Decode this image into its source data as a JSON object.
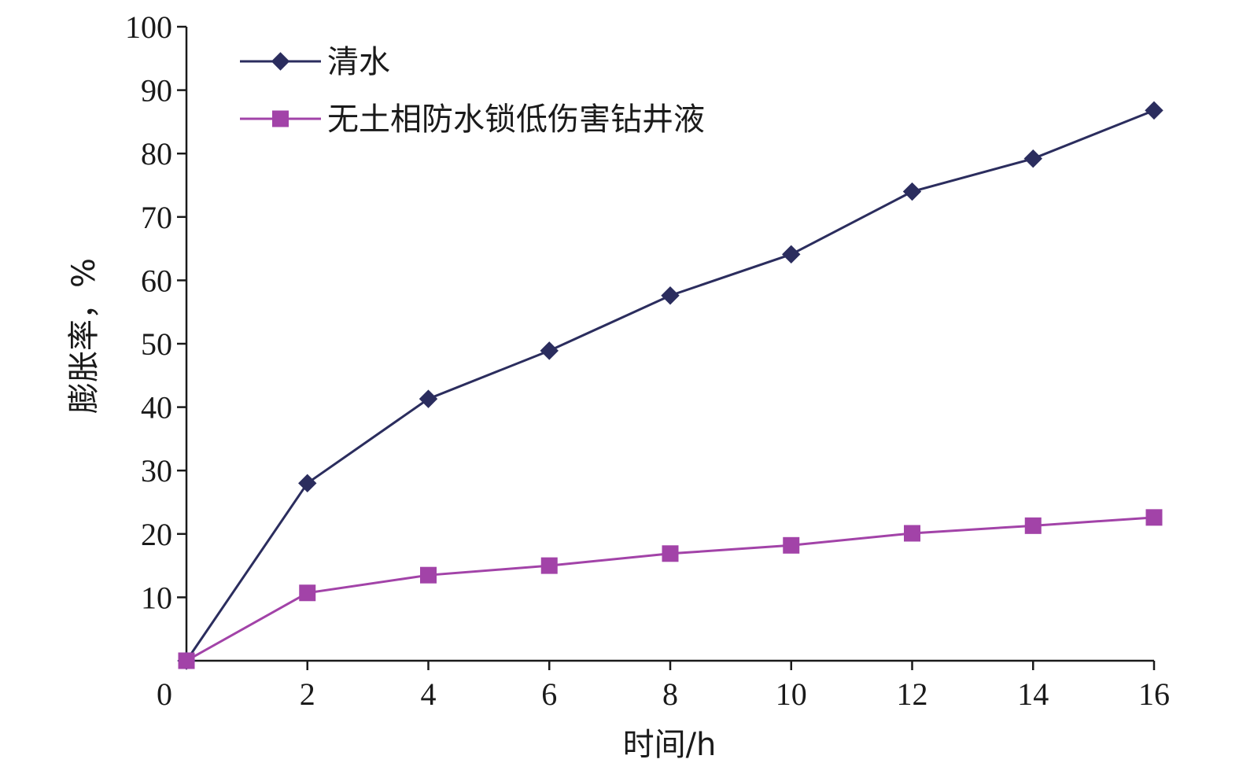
{
  "chart_data": {
    "type": "line",
    "title": "",
    "xlabel": "时间/h",
    "ylabel": "膨胀率，%",
    "xlim": [
      0,
      16
    ],
    "ylim": [
      0,
      100
    ],
    "x_ticks": [
      0,
      2,
      4,
      6,
      8,
      10,
      12,
      14,
      16
    ],
    "y_ticks": [
      10,
      20,
      30,
      40,
      50,
      60,
      70,
      80,
      90,
      100
    ],
    "grid": false,
    "legend_position": "top-left",
    "series": [
      {
        "name": "清水",
        "color": "#2b2d5e",
        "marker": "diamond",
        "x": [
          0,
          2,
          4,
          6,
          8,
          10,
          12,
          14,
          16
        ],
        "y": [
          0,
          28,
          41.3,
          48.9,
          57.6,
          64.1,
          74,
          79.2,
          86.8
        ]
      },
      {
        "name": "无土相防水锁低伤害钻井液",
        "color": "#a243a8",
        "marker": "square",
        "x": [
          0,
          2,
          4,
          6,
          8,
          10,
          12,
          14,
          16
        ],
        "y": [
          0,
          10.7,
          13.5,
          15,
          16.9,
          18.2,
          20.1,
          21.3,
          22.6
        ]
      }
    ]
  }
}
